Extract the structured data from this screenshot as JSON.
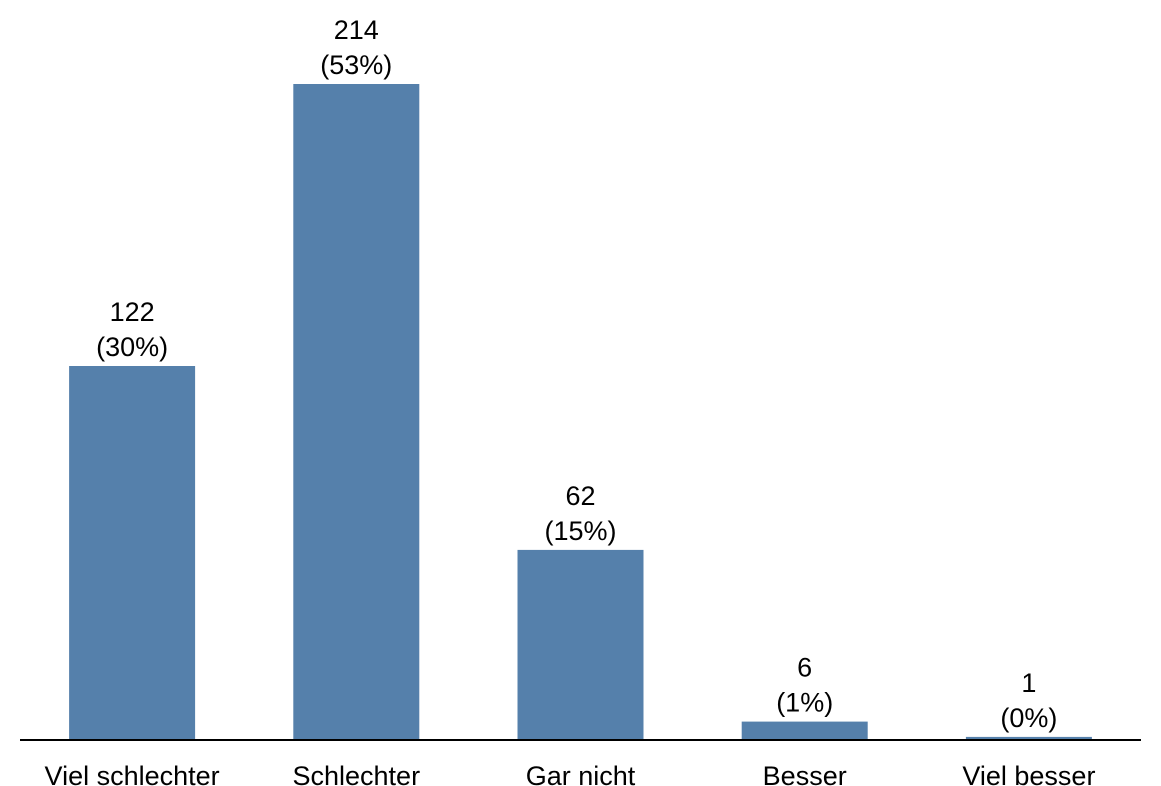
{
  "chart_data": {
    "type": "bar",
    "title": "",
    "xlabel": "",
    "ylabel": "",
    "categories": [
      "Viel schlechter",
      "Schlechter",
      "Gar nicht",
      "Besser",
      "Viel besser"
    ],
    "values": [
      122,
      214,
      62,
      6,
      1
    ],
    "percent_labels": [
      "(30%)",
      "(53%)",
      "(15%)",
      "(1%)",
      "(0%)"
    ],
    "value_labels": [
      "122",
      "214",
      "62",
      "6",
      "1"
    ],
    "ylim": [
      0,
      214
    ],
    "grid": false,
    "legend": "none",
    "colors": {
      "bar": "#5580ab",
      "axis": "#000000",
      "text": "#000000"
    }
  }
}
